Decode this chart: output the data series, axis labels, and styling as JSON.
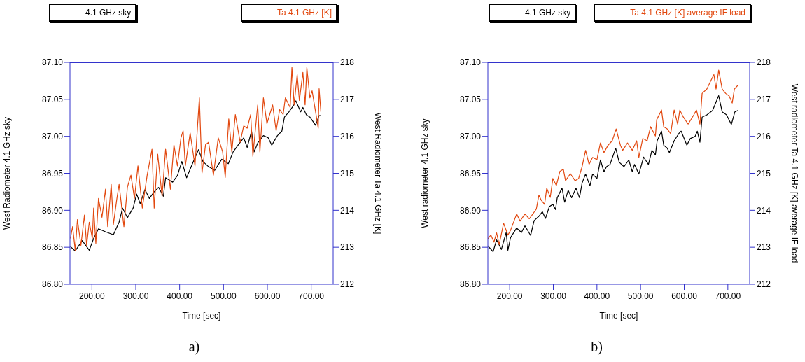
{
  "chart_data": [
    {
      "type": "line",
      "xlabel": "Time [sec]",
      "ylabel": "West Radiometer 4.1 GHz sky",
      "y2label": "West Radiometer Ta 4.1 GHz [K]",
      "legend": "top",
      "annotations": [
        "a)"
      ],
      "xlim": [
        150,
        750
      ],
      "xticks": [
        {
          "value": 200,
          "label": "200.00"
        },
        {
          "value": 300,
          "label": "300.00"
        },
        {
          "value": 400,
          "label": "400.00"
        },
        {
          "value": 500,
          "label": "500.00"
        },
        {
          "value": 600,
          "label": "600.00"
        },
        {
          "value": 700,
          "label": "700.00"
        }
      ],
      "ylim": [
        86.8,
        87.1
      ],
      "yticks": [
        {
          "value": 86.8,
          "label": "86.80"
        },
        {
          "value": 86.85,
          "label": "86.85"
        },
        {
          "value": 86.9,
          "label": "86.90"
        },
        {
          "value": 86.95,
          "label": "86.95"
        },
        {
          "value": 87.0,
          "label": "87.00"
        },
        {
          "value": 87.05,
          "label": "87.05"
        },
        {
          "value": 87.1,
          "label": "87.10"
        }
      ],
      "y2lim": [
        212,
        218
      ],
      "y2ticks": [
        212,
        213,
        214,
        215,
        216,
        217,
        218
      ],
      "series": [
        {
          "name": "4.1 GHz sky",
          "color": "#000000",
          "x": [
            151,
            162,
            178,
            194,
            204,
            215,
            231,
            249,
            262,
            270,
            281,
            294,
            302,
            310,
            321,
            331,
            342,
            352,
            363,
            368,
            384,
            395,
            405,
            416,
            427,
            443,
            453,
            464,
            480,
            496,
            511,
            522,
            533,
            546,
            554,
            564,
            570,
            578,
            591,
            602,
            610,
            623,
            633,
            639,
            649,
            660,
            665,
            676,
            681,
            689,
            697,
            710,
            718,
            722
          ],
          "values": [
            86.851,
            86.845,
            86.859,
            86.846,
            86.862,
            86.875,
            86.871,
            86.867,
            86.884,
            86.903,
            86.89,
            86.903,
            86.922,
            86.909,
            86.928,
            86.916,
            86.925,
            86.931,
            86.919,
            86.944,
            86.938,
            86.947,
            86.966,
            86.944,
            86.96,
            86.982,
            86.966,
            86.96,
            86.954,
            86.969,
            86.963,
            86.979,
            86.988,
            86.998,
            86.985,
            87.007,
            86.979,
            86.991,
            87.001,
            86.998,
            86.988,
            87.001,
            87.007,
            87.026,
            87.033,
            87.042,
            87.048,
            87.033,
            87.039,
            87.029,
            87.026,
            87.015,
            87.028,
            87.028
          ]
        },
        {
          "name": "Ta 4.1 GHz [K]",
          "color": "#e2480f",
          "axis": "y2",
          "x": [
            151,
            156,
            162,
            167,
            175,
            183,
            188,
            194,
            201,
            204,
            209,
            215,
            223,
            231,
            236,
            244,
            249,
            257,
            262,
            273,
            281,
            289,
            297,
            305,
            315,
            326,
            337,
            342,
            350,
            360,
            368,
            379,
            387,
            395,
            403,
            408,
            413,
            424,
            435,
            445,
            451,
            459,
            466,
            477,
            488,
            498,
            504,
            512,
            519,
            527,
            538,
            546,
            554,
            562,
            567,
            578,
            583,
            591,
            599,
            612,
            620,
            628,
            636,
            641,
            652,
            656,
            661,
            668,
            673,
            681,
            686,
            690,
            697,
            702,
            710,
            716,
            718,
            722
          ],
          "values": [
            213.24,
            213.56,
            212.92,
            213.75,
            213.05,
            213.87,
            213.05,
            213.68,
            213.24,
            214.06,
            213.11,
            214.32,
            213.81,
            214.57,
            213.56,
            214.7,
            213.62,
            214.32,
            214.7,
            213.56,
            214.63,
            214.95,
            214.32,
            215.2,
            214.06,
            214.95,
            215.65,
            214.06,
            215.52,
            214.38,
            215.65,
            214.57,
            215.77,
            215.2,
            215.96,
            216.15,
            215.2,
            216.09,
            215.2,
            217.04,
            215.01,
            215.77,
            215.84,
            214.95,
            215.96,
            215.58,
            214.89,
            216.47,
            215.58,
            216.59,
            215.84,
            216.28,
            216.22,
            216.59,
            215.46,
            216.85,
            215.58,
            217.04,
            216.34,
            216.85,
            216.15,
            216.72,
            216.59,
            217.04,
            216.78,
            217.86,
            216.85,
            217.67,
            216.97,
            217.73,
            216.85,
            217.86,
            217.04,
            217.23,
            216.66,
            216.22,
            217.29,
            216.66
          ]
        }
      ]
    },
    {
      "type": "line",
      "xlabel": "Time [sec]",
      "ylabel": "West radiometer 4.1 GHz sky",
      "y2label": "West radiometer Ta 4.1 GHz [K] average IF load",
      "legend": "top",
      "annotations": [
        "b)"
      ],
      "xlim": [
        150,
        750
      ],
      "xticks": [
        {
          "value": 200,
          "label": "200.00"
        },
        {
          "value": 300,
          "label": "300.00"
        },
        {
          "value": 400,
          "label": "400.00"
        },
        {
          "value": 500,
          "label": "500.00"
        },
        {
          "value": 600,
          "label": "600.00"
        },
        {
          "value": 700,
          "label": "700.00"
        }
      ],
      "ylim": [
        86.8,
        87.1
      ],
      "yticks": [
        {
          "value": 86.8,
          "label": "86.80"
        },
        {
          "value": 86.85,
          "label": "86.85"
        },
        {
          "value": 86.9,
          "label": "86.90"
        },
        {
          "value": 86.95,
          "label": "86.95"
        },
        {
          "value": 87.0,
          "label": "87.00"
        },
        {
          "value": 87.05,
          "label": "87.05"
        },
        {
          "value": 87.1,
          "label": "87.10"
        }
      ],
      "y2lim": [
        212,
        218
      ],
      "y2ticks": [
        212,
        213,
        214,
        215,
        216,
        217,
        218
      ],
      "series": [
        {
          "name": "4.1 GHz sky",
          "color": "#000000",
          "x": [
            150,
            162,
            170,
            181,
            192,
            196,
            202,
            216,
            227,
            235,
            248,
            256,
            267,
            275,
            282,
            291,
            299,
            305,
            309,
            320,
            326,
            334,
            342,
            352,
            360,
            366,
            374,
            384,
            390,
            400,
            408,
            416,
            422,
            430,
            443,
            451,
            462,
            473,
            481,
            486,
            496,
            507,
            518,
            526,
            534,
            538,
            548,
            553,
            561,
            566,
            577,
            588,
            593,
            606,
            614,
            625,
            630,
            636,
            641,
            652,
            665,
            679,
            687,
            697,
            708,
            716,
            723
          ],
          "values": [
            86.852,
            86.844,
            86.86,
            86.847,
            86.87,
            86.846,
            86.863,
            86.876,
            86.87,
            86.879,
            86.866,
            86.886,
            86.892,
            86.898,
            86.889,
            86.905,
            86.908,
            86.901,
            86.917,
            86.93,
            86.911,
            86.927,
            86.917,
            86.93,
            86.917,
            86.937,
            86.949,
            86.933,
            86.949,
            86.943,
            86.968,
            86.952,
            86.959,
            86.962,
            86.984,
            86.965,
            86.959,
            86.968,
            86.952,
            86.962,
            86.949,
            86.972,
            86.962,
            86.981,
            86.975,
            86.994,
            87.007,
            86.988,
            86.984,
            86.978,
            86.994,
            87.004,
            87.007,
            86.988,
            86.997,
            87.0,
            87.007,
            86.992,
            87.026,
            87.029,
            87.035,
            87.055,
            87.033,
            87.029,
            87.016,
            87.033,
            87.035
          ]
        },
        {
          "name": "Ta 4.1 GHz [K] average IF load",
          "color": "#e2480f",
          "axis": "y2",
          "x": [
            150,
            157,
            164,
            170,
            176,
            186,
            196,
            202,
            216,
            224,
            235,
            245,
            253,
            261,
            267,
            272,
            280,
            285,
            293,
            299,
            307,
            315,
            323,
            328,
            339,
            350,
            358,
            366,
            374,
            382,
            390,
            400,
            408,
            416,
            425,
            435,
            444,
            454,
            459,
            470,
            481,
            491,
            496,
            505,
            515,
            523,
            534,
            537,
            548,
            553,
            561,
            569,
            577,
            585,
            590,
            598,
            609,
            622,
            628,
            636,
            641,
            652,
            660,
            668,
            673,
            679,
            687,
            695,
            703,
            710,
            715,
            723
          ],
          "values": [
            213.23,
            213.33,
            213.14,
            213.39,
            213.07,
            213.65,
            213.33,
            213.46,
            213.9,
            213.71,
            213.9,
            213.77,
            213.9,
            214.03,
            214.41,
            214.28,
            214.16,
            214.6,
            214.35,
            214.86,
            214.67,
            215.05,
            215.11,
            214.8,
            214.99,
            214.8,
            214.86,
            215.18,
            215.62,
            215.24,
            215.43,
            215.37,
            215.82,
            215.56,
            215.75,
            215.88,
            216.2,
            215.75,
            215.62,
            215.82,
            215.62,
            215.88,
            215.43,
            215.94,
            215.88,
            216.26,
            216.01,
            216.45,
            216.71,
            216.26,
            216.2,
            216.07,
            216.71,
            216.33,
            216.71,
            216.52,
            216.33,
            216.58,
            216.71,
            216.33,
            217.16,
            217.28,
            217.48,
            217.67,
            217.28,
            217.79,
            217.28,
            217.16,
            217.09,
            216.9,
            217.28,
            217.38
          ]
        }
      ]
    }
  ]
}
